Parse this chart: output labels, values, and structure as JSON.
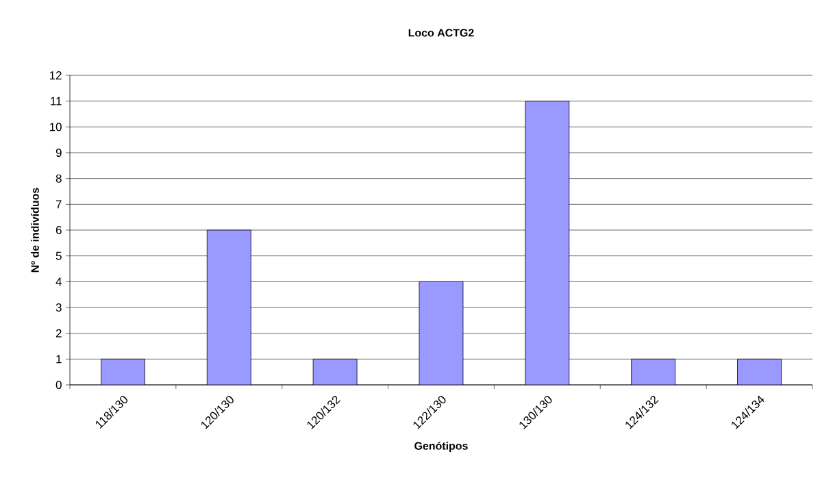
{
  "chart_data": {
    "type": "bar",
    "title": "Loco ACTG2",
    "xlabel": "Genótipos",
    "ylabel": "Nº de indivíduos",
    "categories": [
      "118/130",
      "120/130",
      "120/132",
      "122/130",
      "130/130",
      "124/132",
      "124/134"
    ],
    "values": [
      1,
      6,
      1,
      4,
      11,
      1,
      1
    ],
    "color": "#9999ff",
    "ylim": [
      0,
      12
    ],
    "yticks": [
      0,
      1,
      2,
      3,
      4,
      5,
      6,
      7,
      8,
      9,
      10,
      11,
      12
    ],
    "grid": "y"
  }
}
